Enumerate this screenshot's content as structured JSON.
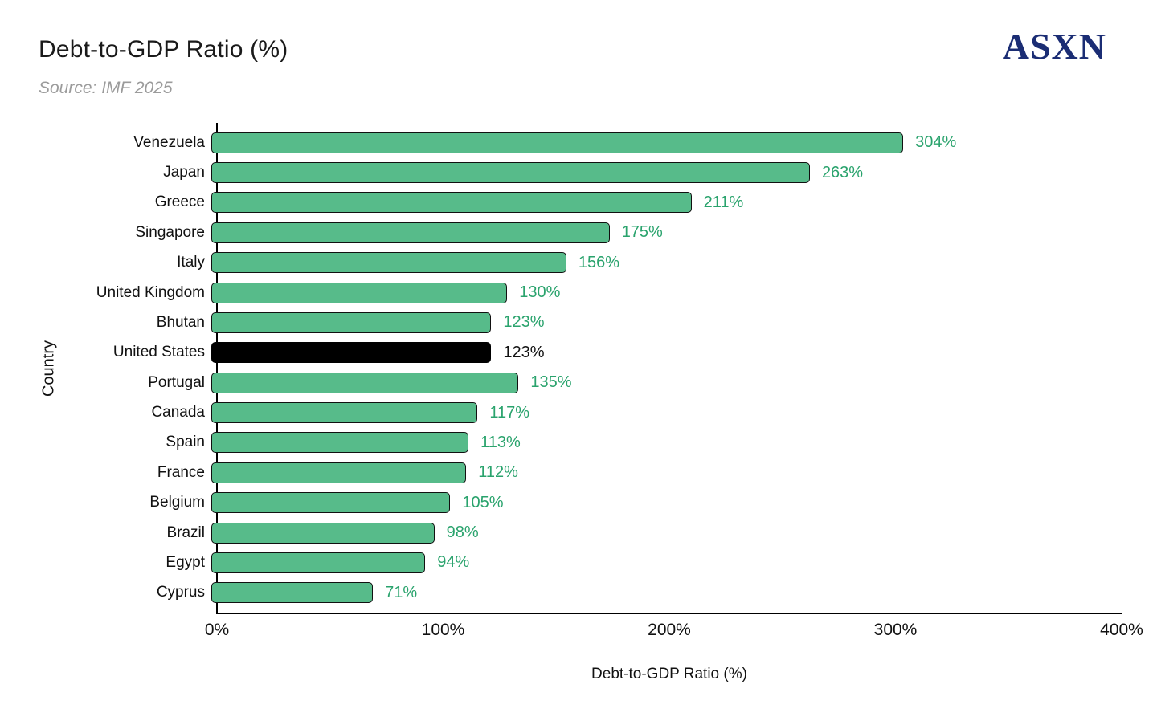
{
  "header": {
    "title": "Debt-to-GDP Ratio (%)",
    "subtitle": "Source: IMF 2025",
    "logo": "ASXN",
    "logo_color": "#1b2d74"
  },
  "chart_data": {
    "type": "bar",
    "orientation": "horizontal",
    "title": "Debt-to-GDP Ratio (%)",
    "subtitle": "Source: IMF 2025",
    "xlabel": "Debt-to-GDP Ratio (%)",
    "ylabel": "Country",
    "xlim": [
      0,
      400
    ],
    "xticks": [
      "0%",
      "100%",
      "200%",
      "300%",
      "400%"
    ],
    "xtick_values": [
      0,
      100,
      200,
      300,
      400
    ],
    "grid": false,
    "legend": false,
    "categories": [
      "Venezuela",
      "Japan",
      "Greece",
      "Singapore",
      "Italy",
      "United Kingdom",
      "Bhutan",
      "United States",
      "Portugal",
      "Canada",
      "Spain",
      "France",
      "Belgium",
      "Brazil",
      "Egypt",
      "Cyprus"
    ],
    "values": [
      304,
      263,
      211,
      175,
      156,
      130,
      123,
      123,
      135,
      117,
      113,
      112,
      105,
      98,
      94,
      71
    ],
    "value_labels": [
      "304%",
      "263%",
      "211%",
      "175%",
      "156%",
      "130%",
      "123%",
      "123%",
      "135%",
      "117%",
      "113%",
      "112%",
      "105%",
      "98%",
      "94%",
      "71%"
    ],
    "bar_color": "#57bb8a",
    "bar_border_color": "#111111",
    "value_label_color": "#2aa36d",
    "highlight_category": "United States",
    "highlight_bar_color": "#000000",
    "highlight_value_label_color": "#111111"
  }
}
